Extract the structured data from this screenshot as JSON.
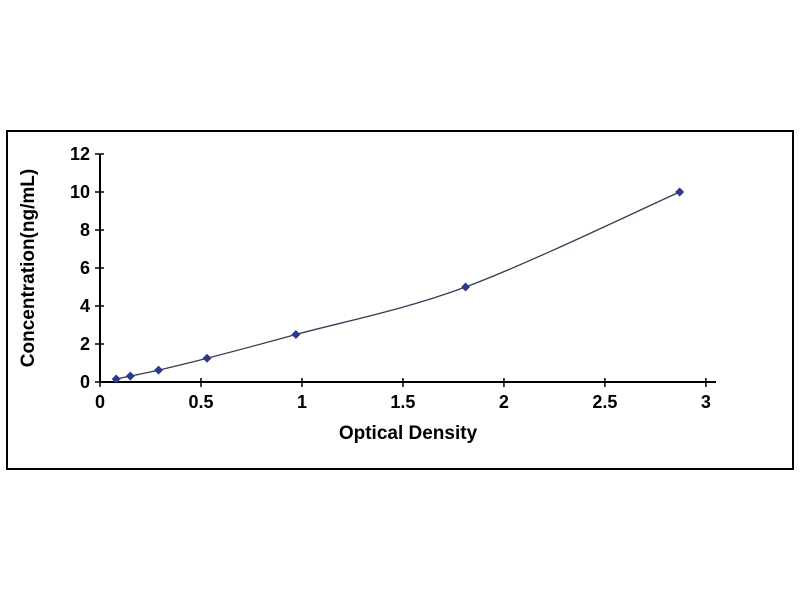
{
  "page": {
    "background": "#ffffff"
  },
  "chart_data": {
    "type": "line",
    "title": "",
    "xlabel": "Optical Density",
    "ylabel": "Concentration(ng/mL)",
    "x": [
      0.08,
      0.15,
      0.29,
      0.53,
      0.97,
      1.81,
      2.87
    ],
    "y": [
      0.156,
      0.312,
      0.625,
      1.25,
      2.5,
      5,
      10
    ],
    "xlim": [
      0,
      3.05
    ],
    "ylim": [
      0,
      12
    ],
    "xticks": [
      0,
      0.5,
      1,
      1.5,
      2,
      2.5,
      3
    ],
    "xtick_labels": [
      "0",
      "0.5",
      "1",
      "1.5",
      "2",
      "2.5",
      "3"
    ],
    "yticks": [
      0,
      2,
      4,
      6,
      8,
      10,
      12
    ],
    "ytick_labels": [
      "0",
      "2",
      "4",
      "6",
      "8",
      "10",
      "12"
    ],
    "grid": false,
    "legend": null,
    "marker": "diamond",
    "marker_color": "#2B3990",
    "line_color": "#3A3A55",
    "axis_color": "#000000",
    "frame_color": "#000000"
  }
}
